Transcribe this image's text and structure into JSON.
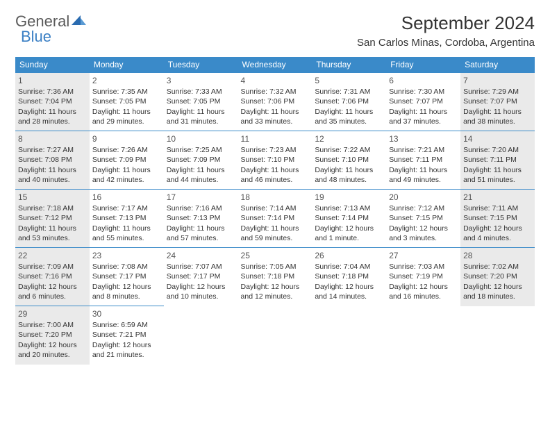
{
  "brand": {
    "general": "General",
    "blue": "Blue"
  },
  "title": "September 2024",
  "location": "San Carlos Minas, Cordoba, Argentina",
  "colors": {
    "header_bg": "#3a8ac9",
    "header_text": "#ffffff",
    "shade_bg": "#eaeaea",
    "border": "#3a8ac9",
    "logo_gray": "#5a5a5a",
    "logo_blue": "#3a7fc4"
  },
  "day_names": [
    "Sunday",
    "Monday",
    "Tuesday",
    "Wednesday",
    "Thursday",
    "Friday",
    "Saturday"
  ],
  "weeks": [
    [
      {
        "n": "1",
        "sr": "Sunrise: 7:36 AM",
        "ss": "Sunset: 7:04 PM",
        "dl": "Daylight: 11 hours and 28 minutes.",
        "sh": true
      },
      {
        "n": "2",
        "sr": "Sunrise: 7:35 AM",
        "ss": "Sunset: 7:05 PM",
        "dl": "Daylight: 11 hours and 29 minutes."
      },
      {
        "n": "3",
        "sr": "Sunrise: 7:33 AM",
        "ss": "Sunset: 7:05 PM",
        "dl": "Daylight: 11 hours and 31 minutes."
      },
      {
        "n": "4",
        "sr": "Sunrise: 7:32 AM",
        "ss": "Sunset: 7:06 PM",
        "dl": "Daylight: 11 hours and 33 minutes."
      },
      {
        "n": "5",
        "sr": "Sunrise: 7:31 AM",
        "ss": "Sunset: 7:06 PM",
        "dl": "Daylight: 11 hours and 35 minutes."
      },
      {
        "n": "6",
        "sr": "Sunrise: 7:30 AM",
        "ss": "Sunset: 7:07 PM",
        "dl": "Daylight: 11 hours and 37 minutes."
      },
      {
        "n": "7",
        "sr": "Sunrise: 7:29 AM",
        "ss": "Sunset: 7:07 PM",
        "dl": "Daylight: 11 hours and 38 minutes.",
        "sh": true
      }
    ],
    [
      {
        "n": "8",
        "sr": "Sunrise: 7:27 AM",
        "ss": "Sunset: 7:08 PM",
        "dl": "Daylight: 11 hours and 40 minutes.",
        "sh": true
      },
      {
        "n": "9",
        "sr": "Sunrise: 7:26 AM",
        "ss": "Sunset: 7:09 PM",
        "dl": "Daylight: 11 hours and 42 minutes."
      },
      {
        "n": "10",
        "sr": "Sunrise: 7:25 AM",
        "ss": "Sunset: 7:09 PM",
        "dl": "Daylight: 11 hours and 44 minutes."
      },
      {
        "n": "11",
        "sr": "Sunrise: 7:23 AM",
        "ss": "Sunset: 7:10 PM",
        "dl": "Daylight: 11 hours and 46 minutes."
      },
      {
        "n": "12",
        "sr": "Sunrise: 7:22 AM",
        "ss": "Sunset: 7:10 PM",
        "dl": "Daylight: 11 hours and 48 minutes."
      },
      {
        "n": "13",
        "sr": "Sunrise: 7:21 AM",
        "ss": "Sunset: 7:11 PM",
        "dl": "Daylight: 11 hours and 49 minutes."
      },
      {
        "n": "14",
        "sr": "Sunrise: 7:20 AM",
        "ss": "Sunset: 7:11 PM",
        "dl": "Daylight: 11 hours and 51 minutes.",
        "sh": true
      }
    ],
    [
      {
        "n": "15",
        "sr": "Sunrise: 7:18 AM",
        "ss": "Sunset: 7:12 PM",
        "dl": "Daylight: 11 hours and 53 minutes.",
        "sh": true
      },
      {
        "n": "16",
        "sr": "Sunrise: 7:17 AM",
        "ss": "Sunset: 7:13 PM",
        "dl": "Daylight: 11 hours and 55 minutes."
      },
      {
        "n": "17",
        "sr": "Sunrise: 7:16 AM",
        "ss": "Sunset: 7:13 PM",
        "dl": "Daylight: 11 hours and 57 minutes."
      },
      {
        "n": "18",
        "sr": "Sunrise: 7:14 AM",
        "ss": "Sunset: 7:14 PM",
        "dl": "Daylight: 11 hours and 59 minutes."
      },
      {
        "n": "19",
        "sr": "Sunrise: 7:13 AM",
        "ss": "Sunset: 7:14 PM",
        "dl": "Daylight: 12 hours and 1 minute."
      },
      {
        "n": "20",
        "sr": "Sunrise: 7:12 AM",
        "ss": "Sunset: 7:15 PM",
        "dl": "Daylight: 12 hours and 3 minutes."
      },
      {
        "n": "21",
        "sr": "Sunrise: 7:11 AM",
        "ss": "Sunset: 7:15 PM",
        "dl": "Daylight: 12 hours and 4 minutes.",
        "sh": true
      }
    ],
    [
      {
        "n": "22",
        "sr": "Sunrise: 7:09 AM",
        "ss": "Sunset: 7:16 PM",
        "dl": "Daylight: 12 hours and 6 minutes.",
        "sh": true
      },
      {
        "n": "23",
        "sr": "Sunrise: 7:08 AM",
        "ss": "Sunset: 7:17 PM",
        "dl": "Daylight: 12 hours and 8 minutes."
      },
      {
        "n": "24",
        "sr": "Sunrise: 7:07 AM",
        "ss": "Sunset: 7:17 PM",
        "dl": "Daylight: 12 hours and 10 minutes."
      },
      {
        "n": "25",
        "sr": "Sunrise: 7:05 AM",
        "ss": "Sunset: 7:18 PM",
        "dl": "Daylight: 12 hours and 12 minutes."
      },
      {
        "n": "26",
        "sr": "Sunrise: 7:04 AM",
        "ss": "Sunset: 7:18 PM",
        "dl": "Daylight: 12 hours and 14 minutes."
      },
      {
        "n": "27",
        "sr": "Sunrise: 7:03 AM",
        "ss": "Sunset: 7:19 PM",
        "dl": "Daylight: 12 hours and 16 minutes."
      },
      {
        "n": "28",
        "sr": "Sunrise: 7:02 AM",
        "ss": "Sunset: 7:20 PM",
        "dl": "Daylight: 12 hours and 18 minutes.",
        "sh": true
      }
    ],
    [
      {
        "n": "29",
        "sr": "Sunrise: 7:00 AM",
        "ss": "Sunset: 7:20 PM",
        "dl": "Daylight: 12 hours and 20 minutes.",
        "sh": true
      },
      {
        "n": "30",
        "sr": "Sunrise: 6:59 AM",
        "ss": "Sunset: 7:21 PM",
        "dl": "Daylight: 12 hours and 21 minutes."
      },
      null,
      null,
      null,
      null,
      null
    ]
  ]
}
